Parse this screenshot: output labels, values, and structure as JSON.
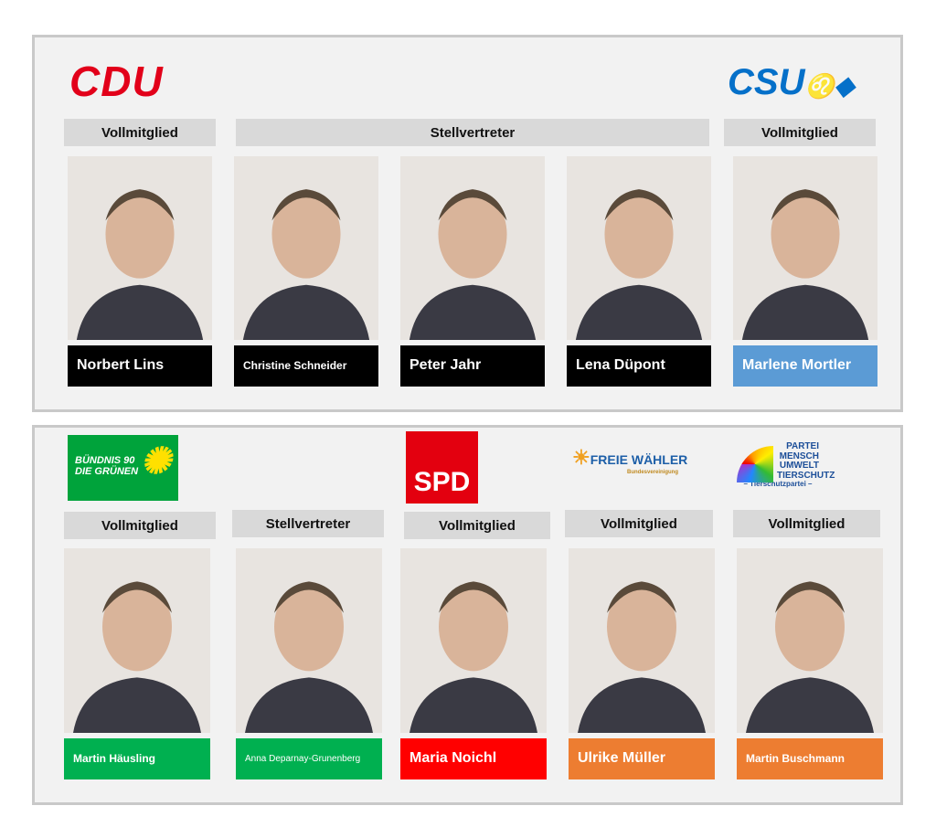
{
  "colors": {
    "black": "#000000",
    "csu_blue": "#5b9bd5",
    "green": "#00b050",
    "red": "#ff0000",
    "orange": "#ed7d31",
    "cdu_red": "#e2001a"
  },
  "logos": {
    "cdu": "CDU",
    "csu": "CSU",
    "gruene": "BÜNDNIS 90 DIE GRÜNEN",
    "spd": "SPD",
    "fw": "FREIE WÄHLER",
    "fw_sub": "Bundesvereinigung",
    "tier": "PARTEI MENSCH UMWELT TIERSCHUTZ",
    "tier_sub": "– Tierschutzpartei –"
  },
  "top": {
    "labels": [
      "Vollmitglied",
      "Stellvertreter",
      "Vollmitglied"
    ],
    "members": [
      {
        "name": "Norbert Lins",
        "color": "#000000"
      },
      {
        "name": "Christine Schneider",
        "color": "#000000"
      },
      {
        "name": "Peter Jahr",
        "color": "#000000"
      },
      {
        "name": "Lena Düpont",
        "color": "#000000"
      },
      {
        "name": "Marlene Mortler",
        "color": "#5b9bd5"
      }
    ]
  },
  "bottom": {
    "labels": [
      "Vollmitglied",
      "Stellvertreter",
      "Vollmitglied",
      "Vollmitglied",
      "Vollmitglied"
    ],
    "members": [
      {
        "name": "Martin Häusling",
        "color": "#00b050"
      },
      {
        "name": "Anna Deparnay-Grunenberg",
        "color": "#00b050"
      },
      {
        "name": "Maria Noichl",
        "color": "#ff0000"
      },
      {
        "name": "Ulrike Müller",
        "color": "#ed7d31"
      },
      {
        "name": "Martin Buschmann",
        "color": "#ed7d31"
      }
    ]
  }
}
